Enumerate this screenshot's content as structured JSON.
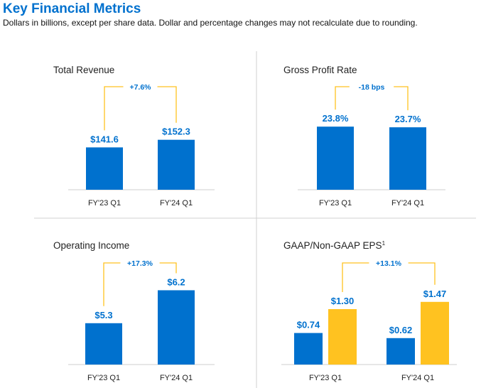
{
  "header": {
    "title": "Key Financial Metrics",
    "subtitle": "Dollars in billions, except per share data.  Dollar and percentage changes may not recalculate due to rounding."
  },
  "colors": {
    "blue": "#0071ce",
    "yellow": "#ffc220",
    "bracket": "#ffc220",
    "text": "#222222",
    "axis": "#cfcfcf",
    "divider": "#d0d0d0"
  },
  "chart_data": [
    {
      "type": "bar",
      "title": "Total Revenue",
      "categories": [
        "FY'23 Q1",
        "FY'24 Q1"
      ],
      "series": [
        {
          "name": "Total Revenue",
          "color": "blue",
          "values": [
            141.6,
            152.3
          ],
          "labels": [
            "$141.6",
            "$152.3"
          ]
        }
      ],
      "change_label": "+7.6%",
      "xlabel": "",
      "ylabel": ""
    },
    {
      "type": "bar",
      "title": "Gross Profit Rate",
      "categories": [
        "FY'23 Q1",
        "FY'24 Q1"
      ],
      "series": [
        {
          "name": "Gross Profit Rate",
          "color": "blue",
          "values": [
            23.8,
            23.7
          ],
          "labels": [
            "23.8%",
            "23.7%"
          ]
        }
      ],
      "change_label": "-18 bps",
      "xlabel": "",
      "ylabel": ""
    },
    {
      "type": "bar",
      "title": "Operating Income",
      "categories": [
        "FY'23 Q1",
        "FY'24 Q1"
      ],
      "series": [
        {
          "name": "Operating Income",
          "color": "blue",
          "values": [
            5.3,
            6.2
          ],
          "labels": [
            "$5.3",
            "$6.2"
          ]
        }
      ],
      "change_label": "+17.3%",
      "xlabel": "",
      "ylabel": ""
    },
    {
      "type": "bar",
      "title": "GAAP/Non-GAAP EPS",
      "title_superscript": "1",
      "categories": [
        "FY'23 Q1",
        "FY'24 Q1"
      ],
      "series": [
        {
          "name": "GAAP EPS",
          "color": "blue",
          "values": [
            0.74,
            0.62
          ],
          "labels": [
            "$0.74",
            "$0.62"
          ]
        },
        {
          "name": "Non-GAAP EPS",
          "color": "yellow",
          "values": [
            1.3,
            1.47
          ],
          "labels": [
            "$1.30",
            "$1.47"
          ]
        }
      ],
      "change_label": "+13.1%",
      "xlabel": "",
      "ylabel": ""
    }
  ]
}
